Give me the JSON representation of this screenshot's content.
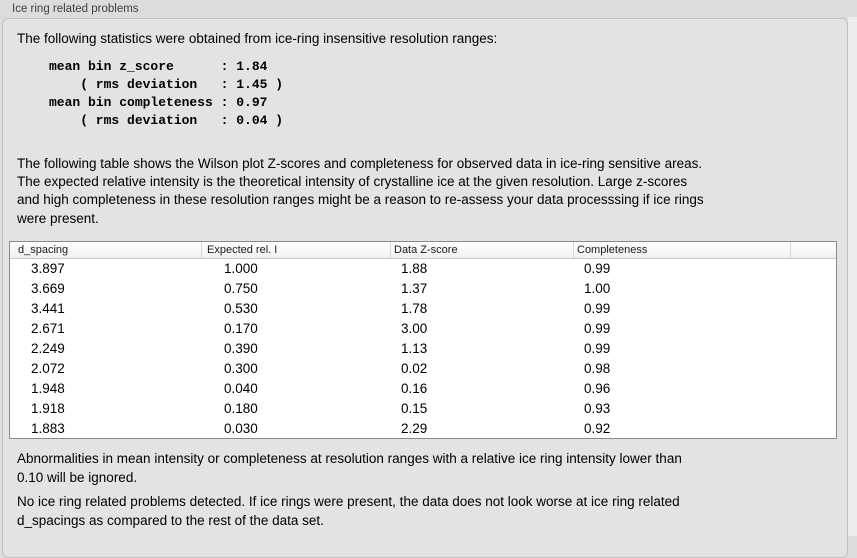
{
  "group": {
    "title": "Ice ring related problems"
  },
  "intro": "The following statistics were obtained from ice-ring insensitive resolution ranges:",
  "stats_block": {
    "lines": [
      "mean bin z_score      : 1.84",
      "    ( rms deviation   : 1.45 )",
      "mean bin completeness : 0.97",
      "    ( rms deviation   : 0.04 )"
    ]
  },
  "table_description": {
    "lines": [
      "The following table shows the Wilson plot Z-scores and completeness for observed data in ice-ring sensitive areas.",
      "The expected relative intensity is the theoretical intensity of crystalline ice at the given resolution. Large z-scores",
      "and high completeness in these resolution ranges might be a reason to re-assess your data processsing if ice rings",
      "were present."
    ]
  },
  "table": {
    "columns": [
      "d_spacing",
      "Expected rel. I",
      "Data Z-score",
      "Completeness"
    ],
    "rows": [
      [
        "3.897",
        "1.000",
        "1.88",
        "0.99"
      ],
      [
        "3.669",
        "0.750",
        "1.37",
        "1.00"
      ],
      [
        "3.441",
        "0.530",
        "1.78",
        "0.99"
      ],
      [
        "2.671",
        "0.170",
        "3.00",
        "0.99"
      ],
      [
        "2.249",
        "0.390",
        "1.13",
        "0.99"
      ],
      [
        "2.072",
        "0.300",
        "0.02",
        "0.98"
      ],
      [
        "1.948",
        "0.040",
        "0.16",
        "0.96"
      ],
      [
        "1.918",
        "0.180",
        "0.15",
        "0.93"
      ],
      [
        "1.883",
        "0.030",
        "2.29",
        "0.92"
      ]
    ]
  },
  "note_ignore": {
    "lines": [
      "Abnormalities in mean intensity or completeness at resolution ranges with a relative ice ring intensity lower than",
      "0.10 will be ignored."
    ]
  },
  "conclusion": {
    "lines": [
      "No ice ring related problems detected. If ice rings were present, the data does not look worse at ice ring related",
      "d_spacings as compared to the rest of the data set."
    ]
  }
}
